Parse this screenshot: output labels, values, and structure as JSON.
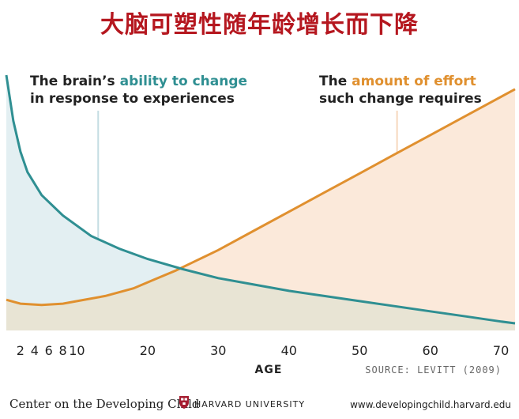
{
  "chart_data": {
    "type": "line",
    "title": "大脑可塑性随年龄增长而下降",
    "xlabel": "AGE",
    "ylabel": "",
    "x_ticks": [
      2,
      4,
      6,
      8,
      10,
      20,
      30,
      40,
      50,
      60,
      70
    ],
    "xlim": [
      0,
      72
    ],
    "ylim": [
      0,
      100
    ],
    "grid": false,
    "series": [
      {
        "name": "The brain's ability to change in response to experiences",
        "name_parts": [
          "The brain’s ",
          "ability to change",
          "in response to experiences"
        ],
        "color": "#2f8f92",
        "fill": "#e3eff2",
        "x": [
          0,
          1,
          2,
          3,
          5,
          8,
          12,
          16,
          20,
          25,
          30,
          35,
          40,
          45,
          50,
          55,
          60,
          65,
          70,
          72
        ],
        "y": [
          100,
          82,
          70,
          62,
          53,
          45,
          37,
          32,
          28,
          24,
          20.5,
          18,
          15.5,
          13.5,
          11.5,
          9.5,
          7.5,
          5.5,
          3.5,
          2.8
        ]
      },
      {
        "name": "The amount of effort such change requires",
        "name_parts": [
          "The ",
          "amount of effort",
          "such change requires"
        ],
        "color": "#e0902f",
        "fill": "#fbe9da",
        "x": [
          0,
          2,
          5,
          8,
          10,
          14,
          18,
          21,
          24,
          27,
          30,
          35,
          40,
          45,
          50,
          55,
          60,
          65,
          70,
          72
        ],
        "y": [
          12,
          10.5,
          10,
          10.5,
          11.5,
          13.5,
          16.5,
          20,
          23.5,
          27.5,
          31.5,
          39,
          46.5,
          54,
          61.5,
          69,
          76.5,
          84,
          91.5,
          94.5
        ]
      }
    ],
    "source": "SOURCE: LEVITT (2009)"
  },
  "footer": {
    "org": "Center on the Developing Child",
    "university": "HARVARD UNIVERSITY",
    "url": "www.developingchild.harvard.edu"
  }
}
